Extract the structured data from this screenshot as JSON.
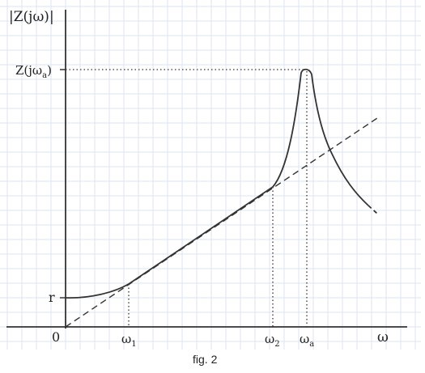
{
  "figure": {
    "y_axis_label": "|Z(jω)|",
    "x_axis_label": "ω",
    "origin_label": "0",
    "y_marker_peak": "Z(jω",
    "y_marker_peak_sub": "a",
    "y_marker_peak_close": ")",
    "y_marker_r": "r",
    "x_marker_1": "ω",
    "x_marker_1_sub": "1",
    "x_marker_2": "ω",
    "x_marker_2_sub": "2",
    "x_marker_a": "ω",
    "x_marker_a_sub": "a",
    "caption": "fig. 2"
  },
  "colors": {
    "background": "#ffffff",
    "grid": "#dde6ef",
    "ink": "#333333"
  }
}
